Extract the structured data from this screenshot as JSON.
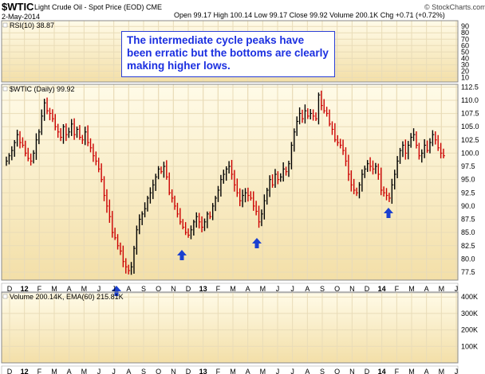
{
  "header": {
    "symbol": "$WTIC",
    "description": "Light Crude Oil - Spot Price (EOD) CME",
    "date": "2-May-2014",
    "quote": "Open 99.17  High 100.14  Low 99.17  Close 99.92  Volume 200.1K  Chg +0.71 (+0.72%)",
    "brand": "© StockCharts.com"
  },
  "annotation": {
    "text": "The intermediate cycle peaks have been erratic but the bottoms are clearly making higher lows.",
    "color": "#1b2fe0"
  },
  "panels": {
    "rsi_label": "RSI(10) 38.87",
    "price_label": "$WTIC (Daily) 99.92",
    "volume_label": "Volume 200.14K, EMA(60) 215.81K"
  },
  "colors": {
    "panel_bg_top": "#fffbe8",
    "panel_bg_bottom": "#f3dfa8",
    "grid": "#e9dcb8",
    "up": "#000000",
    "down": "#cc0000",
    "arrow": "#1a3fd0"
  },
  "chart_data": {
    "type": "line",
    "title": "$WTIC (Daily) 99.92",
    "ylim": [
      76,
      113
    ],
    "y_ticks": [
      "77.5",
      "80.0",
      "82.5",
      "85.0",
      "87.5",
      "90.0",
      "92.5",
      "95.0",
      "97.5",
      "100.0",
      "102.5",
      "105.0",
      "107.5",
      "110.0",
      "112.5"
    ],
    "rsi_ticks": [
      "10",
      "20",
      "30",
      "40",
      "50",
      "60",
      "70",
      "80",
      "90"
    ],
    "volume_ticks": [
      "100K",
      "200K",
      "300K",
      "400K"
    ],
    "x_ticks": [
      "D",
      "12",
      "F",
      "M",
      "A",
      "M",
      "J",
      "J",
      "A",
      "S",
      "O",
      "N",
      "D",
      "13",
      "F",
      "M",
      "A",
      "M",
      "J",
      "J",
      "A",
      "S",
      "O",
      "N",
      "D",
      "14",
      "F",
      "M",
      "A",
      "M",
      "J"
    ],
    "x_start": "2011-12",
    "series": [
      {
        "values": [
          [
            0,
            98.5
          ],
          [
            1,
            99.5
          ],
          [
            2,
            100.5
          ],
          [
            3,
            102
          ],
          [
            4,
            103.5
          ],
          [
            5,
            102
          ],
          [
            6,
            101.5
          ],
          [
            7,
            100
          ],
          [
            8,
            99
          ],
          [
            9,
            98.5
          ],
          [
            10,
            100
          ],
          [
            11,
            102.5
          ],
          [
            12,
            104
          ],
          [
            13,
            107
          ],
          [
            14,
            109.5
          ],
          [
            15,
            108
          ],
          [
            16,
            107.5
          ],
          [
            17,
            106.5
          ],
          [
            18,
            105
          ],
          [
            19,
            104
          ],
          [
            20,
            103
          ],
          [
            21,
            105
          ],
          [
            22,
            103.5
          ],
          [
            23,
            104
          ],
          [
            24,
            105.5
          ],
          [
            25,
            103.5
          ],
          [
            26,
            104.5
          ],
          [
            27,
            103
          ],
          [
            28,
            102.5
          ],
          [
            29,
            104
          ],
          [
            30,
            102
          ],
          [
            31,
            101
          ],
          [
            32,
            99.5
          ],
          [
            33,
            98.5
          ],
          [
            34,
            97
          ],
          [
            35,
            95
          ],
          [
            36,
            92
          ],
          [
            37,
            90
          ],
          [
            38,
            88
          ],
          [
            39,
            85
          ],
          [
            40,
            84
          ],
          [
            41,
            82.5
          ],
          [
            42,
            81.5
          ],
          [
            43,
            79.5
          ],
          [
            44,
            78.5
          ],
          [
            45,
            77.8
          ],
          [
            46,
            78.5
          ],
          [
            47,
            82
          ],
          [
            48,
            85.5
          ],
          [
            49,
            87.5
          ],
          [
            50,
            88.5
          ],
          [
            51,
            89.5
          ],
          [
            52,
            91.5
          ],
          [
            53,
            92.5
          ],
          [
            54,
            94
          ],
          [
            55,
            95.5
          ],
          [
            56,
            97
          ],
          [
            57,
            96.5
          ],
          [
            58,
            97.5
          ],
          [
            59,
            95.5
          ],
          [
            60,
            92.5
          ],
          [
            61,
            91.5
          ],
          [
            62,
            90
          ],
          [
            63,
            88.5
          ],
          [
            64,
            87
          ],
          [
            65,
            86
          ],
          [
            66,
            85
          ],
          [
            67,
            84.5
          ],
          [
            68,
            85.5
          ],
          [
            69,
            87
          ],
          [
            70,
            88
          ],
          [
            71,
            87
          ],
          [
            72,
            86
          ],
          [
            73,
            87
          ],
          [
            74,
            88.5
          ],
          [
            75,
            88
          ],
          [
            76,
            90
          ],
          [
            77,
            91.5
          ],
          [
            78,
            93
          ],
          [
            79,
            95
          ],
          [
            80,
            96
          ],
          [
            81,
            97
          ],
          [
            82,
            97.5
          ],
          [
            83,
            96
          ],
          [
            84,
            94
          ],
          [
            85,
            92.5
          ],
          [
            86,
            91
          ],
          [
            87,
            92
          ],
          [
            88,
            92.5
          ],
          [
            89,
            92
          ],
          [
            90,
            91.5
          ],
          [
            91,
            90
          ],
          [
            92,
            89
          ],
          [
            93,
            87
          ],
          [
            94,
            88.5
          ],
          [
            95,
            91
          ],
          [
            96,
            93
          ],
          [
            97,
            95
          ],
          [
            98,
            94
          ],
          [
            99,
            96
          ],
          [
            100,
            95
          ],
          [
            101,
            95.5
          ],
          [
            102,
            97
          ],
          [
            103,
            96.5
          ],
          [
            104,
            98
          ],
          [
            105,
            101.5
          ],
          [
            106,
            104
          ],
          [
            107,
            106
          ],
          [
            108,
            107.5
          ],
          [
            109,
            106.5
          ],
          [
            110,
            108
          ],
          [
            111,
            107
          ],
          [
            112,
            107.5
          ],
          [
            113,
            107
          ],
          [
            114,
            106.5
          ],
          [
            115,
            111
          ],
          [
            116,
            109
          ],
          [
            117,
            108
          ],
          [
            118,
            107.5
          ],
          [
            119,
            105.5
          ],
          [
            120,
            104.5
          ],
          [
            121,
            102.5
          ],
          [
            122,
            102
          ],
          [
            123,
            101.5
          ],
          [
            124,
            100.5
          ],
          [
            125,
            98.5
          ],
          [
            126,
            96
          ],
          [
            127,
            94
          ],
          [
            128,
            93
          ],
          [
            129,
            92.5
          ],
          [
            130,
            94
          ],
          [
            131,
            96
          ],
          [
            132,
            97
          ],
          [
            133,
            98
          ],
          [
            134,
            97.5
          ],
          [
            135,
            97
          ],
          [
            136,
            97.5
          ],
          [
            137,
            96
          ],
          [
            138,
            93
          ],
          [
            139,
            92.5
          ],
          [
            140,
            92
          ],
          [
            141,
            91.5
          ],
          [
            142,
            94
          ],
          [
            143,
            96
          ],
          [
            144,
            98.5
          ],
          [
            145,
            100.5
          ],
          [
            146,
            101.5
          ],
          [
            147,
            100
          ],
          [
            148,
            101.5
          ],
          [
            149,
            103
          ],
          [
            150,
            103.5
          ],
          [
            151,
            101.5
          ],
          [
            152,
            99.5
          ],
          [
            153,
            100
          ],
          [
            154,
            101.5
          ],
          [
            155,
            100.5
          ],
          [
            156,
            102
          ],
          [
            157,
            103.5
          ],
          [
            158,
            102.5
          ],
          [
            159,
            101
          ],
          [
            160,
            100
          ],
          [
            161,
            99.5
          ]
        ]
      }
    ],
    "annotations": [
      "The intermediate cycle peaks have been erratic but the bottoms are clearly making higher lows."
    ],
    "grid": true,
    "legend": "none"
  }
}
